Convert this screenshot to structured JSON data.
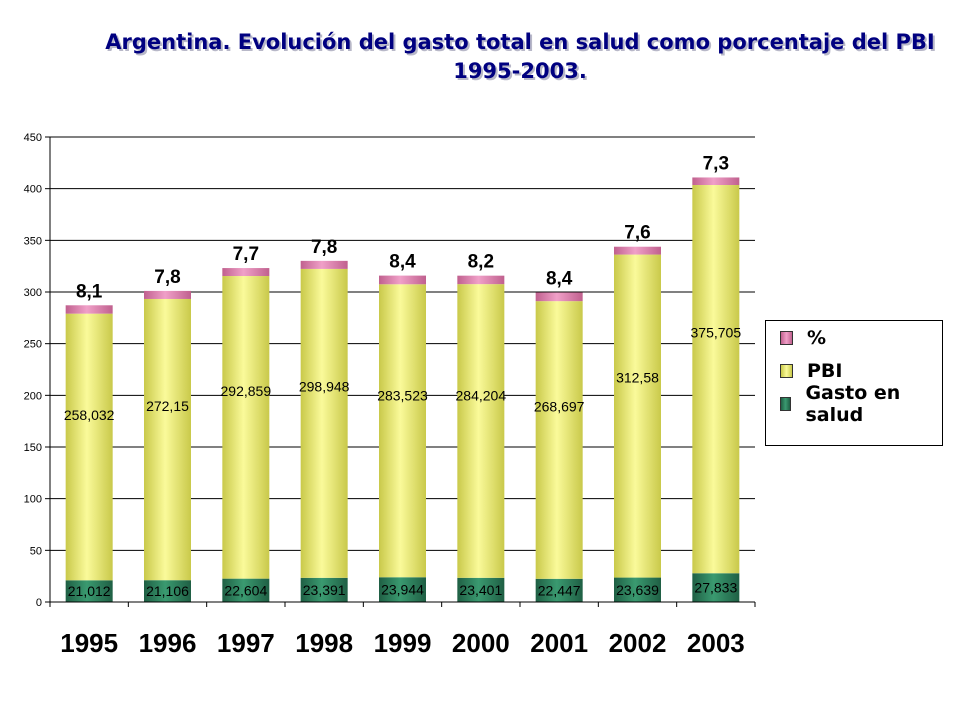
{
  "title": {
    "line1": "Argentina. Evolución del gasto total en salud como porcentaje del PBI",
    "line2": "1995-2003."
  },
  "chart_data": {
    "type": "bar",
    "stacked": true,
    "title": "Argentina. Evolución del gasto total en salud como porcentaje del PBI 1995-2003.",
    "categories": [
      "1995",
      "1996",
      "1997",
      "1998",
      "1999",
      "2000",
      "2001",
      "2002",
      "2003"
    ],
    "ylim": [
      0,
      450
    ],
    "yticks": [
      0,
      50,
      100,
      150,
      200,
      250,
      300,
      350,
      400,
      450
    ],
    "grid": true,
    "legend_position": "right",
    "series": [
      {
        "name": "Gasto en salud",
        "color": "#2e7d5b",
        "values": [
          21.012,
          21.106,
          22.604,
          23.391,
          23.944,
          23.401,
          22.447,
          23.639,
          27.833
        ],
        "labels": [
          "21,012",
          "21,106",
          "22,604",
          "23,391",
          "23,944",
          "23,401",
          "22,447",
          "23,639",
          "27,833"
        ]
      },
      {
        "name": "PBI",
        "color": "#f0f07a",
        "values": [
          258.032,
          272.15,
          292.859,
          298.948,
          283.523,
          284.204,
          268.697,
          312.58,
          375.705
        ],
        "labels": [
          "258,032",
          "272,15",
          "292,859",
          "298,948",
          "283,523",
          "284,204",
          "268,697",
          "312,58",
          "375,705"
        ]
      },
      {
        "name": "%",
        "color": "#e880b0",
        "values": [
          8.1,
          7.8,
          7.7,
          7.8,
          8.4,
          8.2,
          8.4,
          7.6,
          7.3
        ],
        "labels": [
          "8,1",
          "7,8",
          "7,7",
          "7,8",
          "8,4",
          "8,2",
          "8,4",
          "7,6",
          "7,3"
        ]
      }
    ]
  }
}
